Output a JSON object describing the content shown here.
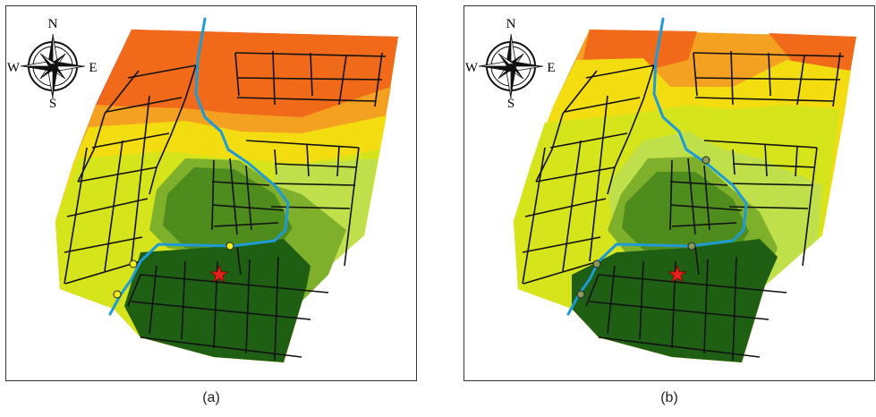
{
  "figure": {
    "panels": [
      {
        "id": "a",
        "caption": "(a)"
      },
      {
        "id": "b",
        "caption": "(b)"
      }
    ]
  },
  "compass": {
    "n": "N",
    "s": "S",
    "e": "E",
    "w": "W",
    "icon": "compass-rose-icon"
  },
  "legend_colors": {
    "very_high": "#e8381c",
    "high": "#f06a1a",
    "medium_high": "#f4a020",
    "medium": "#f3dc10",
    "medium_low": "#d6e41c",
    "low": "#bfe04a",
    "lower": "#7fb02c",
    "very_low": "#4e8c1e",
    "lowest": "#1f5f14",
    "river": "#1e9ad6",
    "roads": "#111111",
    "point_a": "#f5f01c",
    "point_b": "#8a9a5a",
    "star": "#e8201a"
  },
  "markers": {
    "star_icon": "star-icon",
    "point_icon": "circle-marker-icon"
  }
}
